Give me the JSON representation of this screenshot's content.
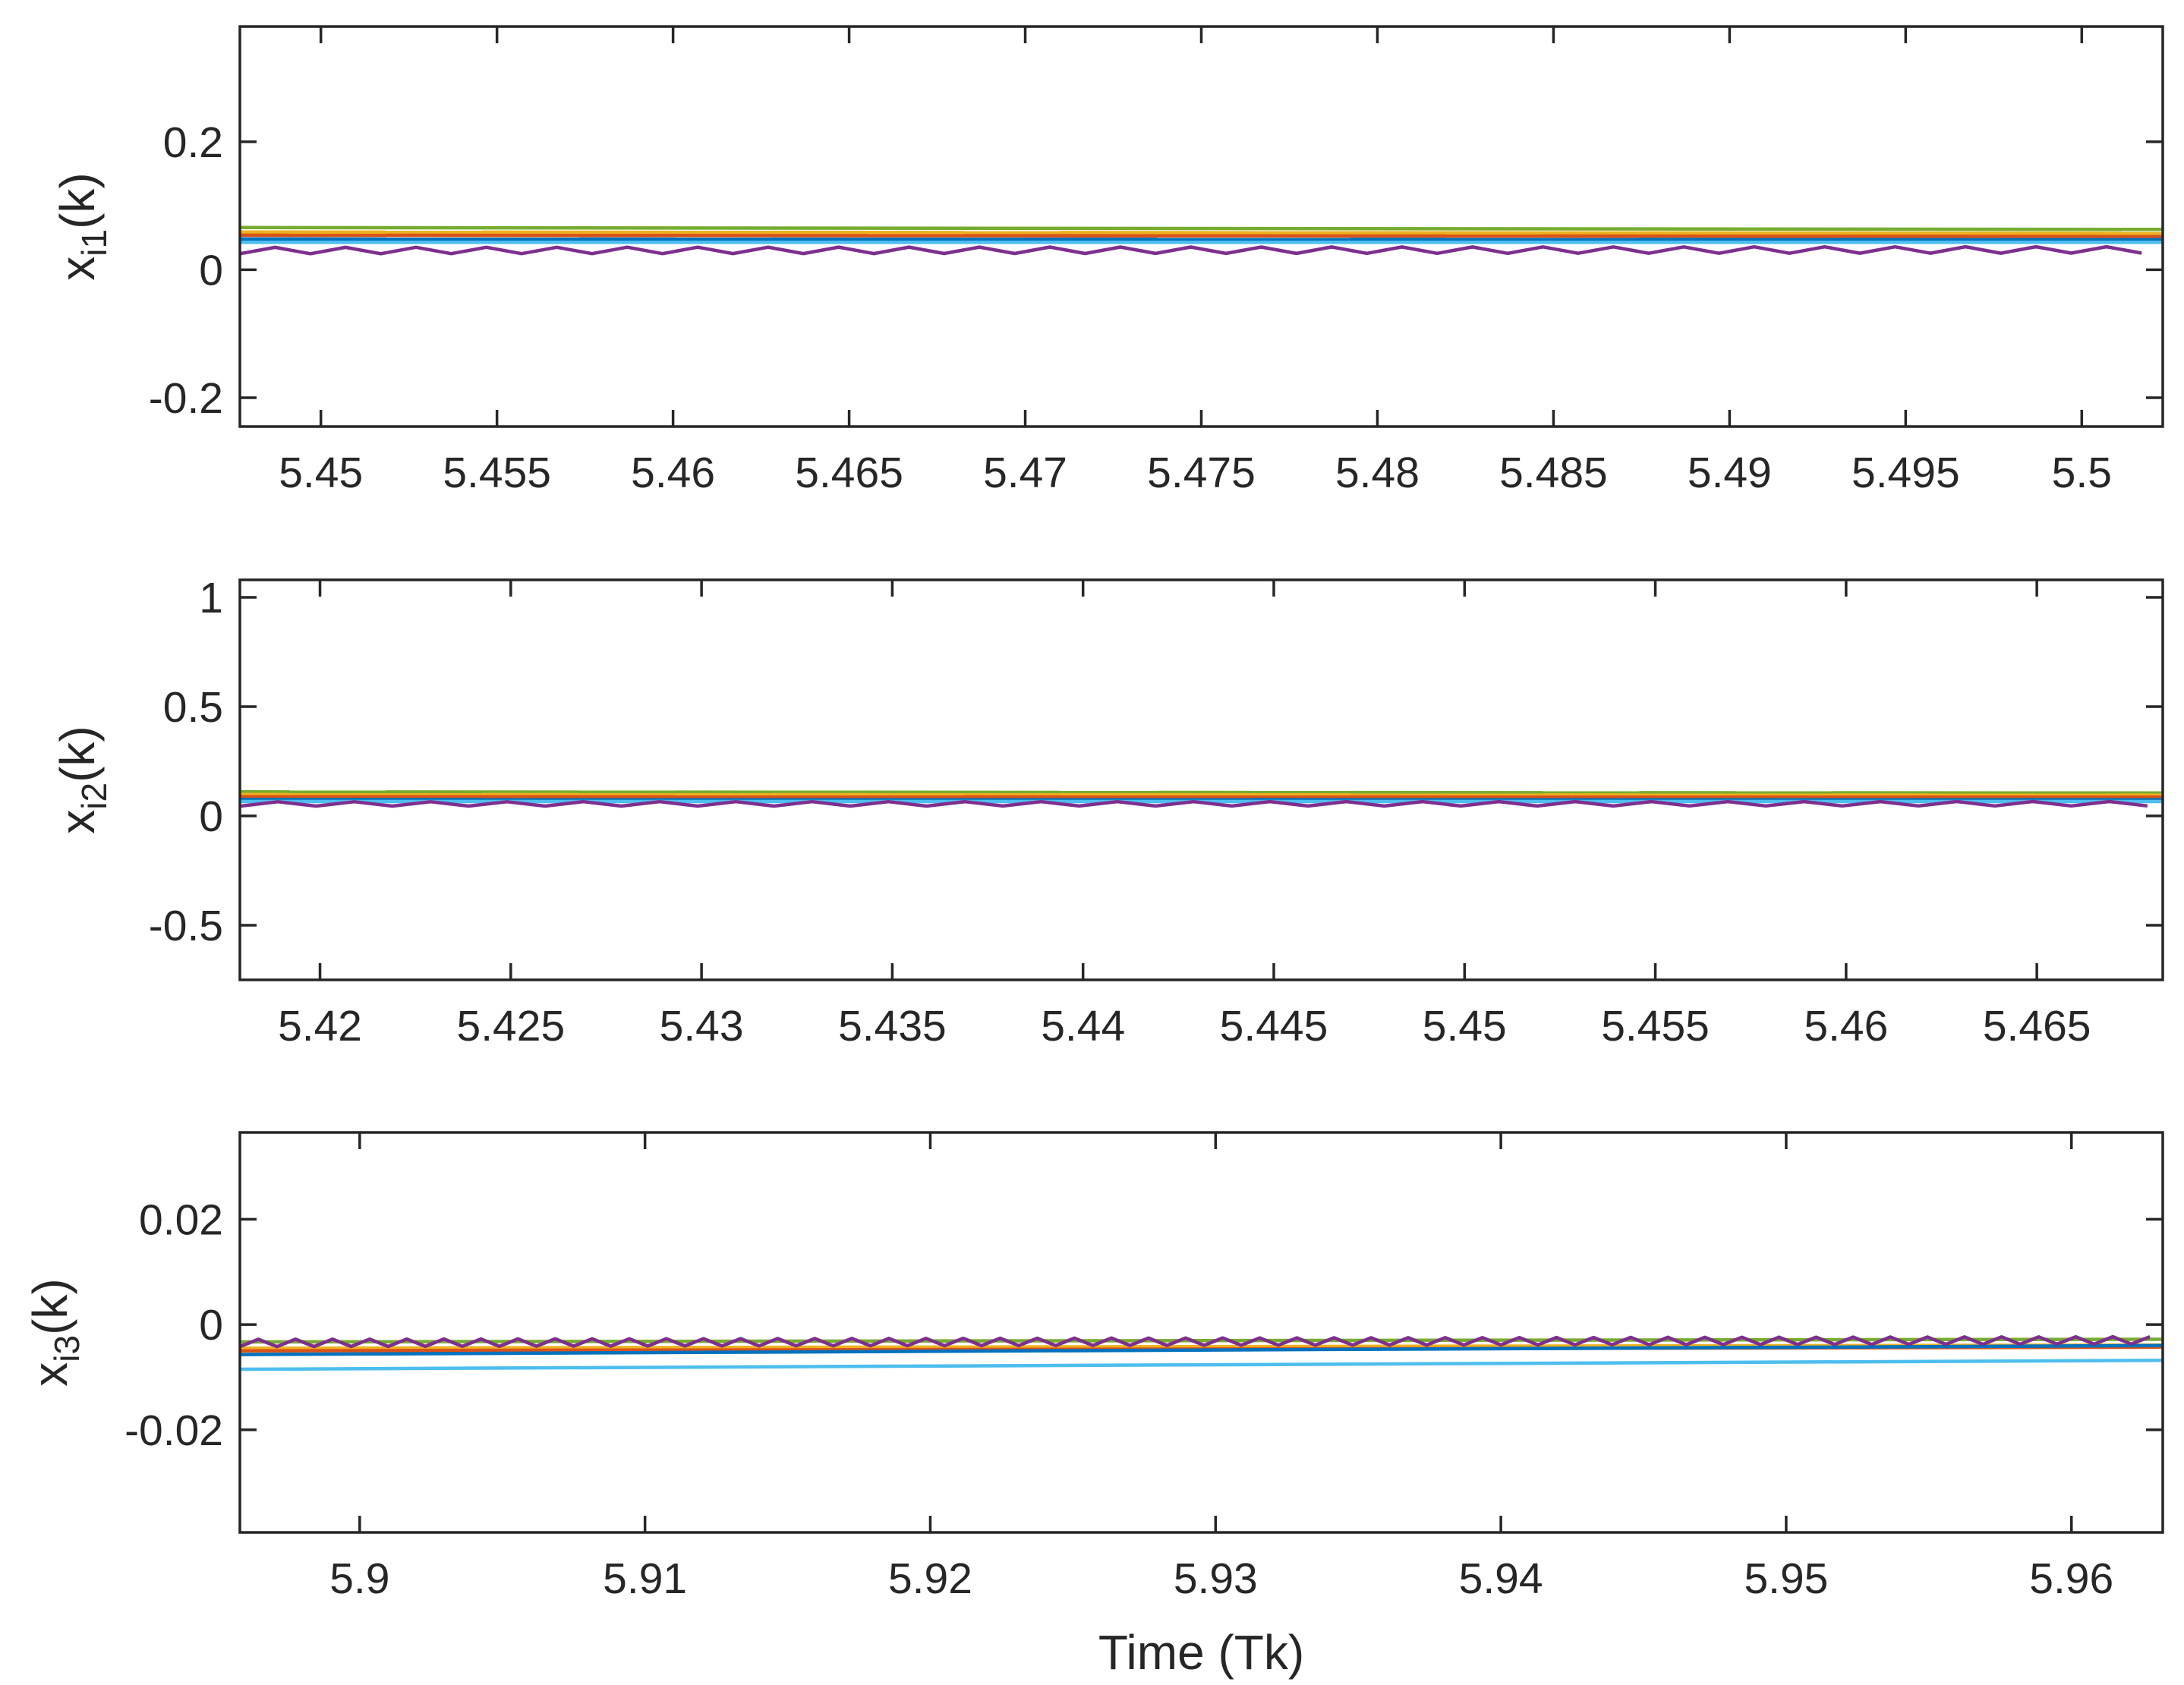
{
  "chart_data": [
    {
      "type": "line",
      "ylabel": {
        "base": "x",
        "sub": "i1",
        "suffix": "(k)"
      },
      "xlabel": "",
      "xlim": [
        5.4477,
        5.5023
      ],
      "ylim": [
        -0.245,
        0.38
      ],
      "xticks": [
        "5.45",
        "5.455",
        "5.46",
        "5.465",
        "5.47",
        "5.475",
        "5.48",
        "5.485",
        "5.49",
        "5.495",
        "5.5"
      ],
      "xtick_values": [
        5.45,
        5.455,
        5.46,
        5.465,
        5.47,
        5.475,
        5.48,
        5.485,
        5.49,
        5.495,
        5.5
      ],
      "yticks": [
        "-0.2",
        "0",
        "0.2"
      ],
      "ytick_values": [
        -0.2,
        0,
        0.2
      ],
      "grid": false,
      "series": [
        {
          "color": "#77ac30",
          "x": [
            5.4477,
            5.5023
          ],
          "y": [
            0.066,
            0.063
          ]
        },
        {
          "color": "#edb120",
          "x": [
            5.4477,
            5.5023
          ],
          "y": [
            0.059,
            0.057
          ]
        },
        {
          "color": "#d95319",
          "x": [
            5.4477,
            5.5023
          ],
          "y": [
            0.054,
            0.052
          ]
        },
        {
          "color": "#0072bd",
          "x": [
            5.4477,
            5.5023
          ],
          "y": [
            0.048,
            0.047
          ]
        },
        {
          "color": "#4dbeee",
          "x": [
            5.4477,
            5.5023
          ],
          "y": [
            0.043,
            0.043
          ]
        },
        {
          "color": "#7e2f8e",
          "x": [
            5.4477,
            5.5023
          ],
          "y": [
            0.03,
            0.031
          ],
          "oscillation": {
            "amplitude": 0.005,
            "period": 0.002
          }
        }
      ]
    },
    {
      "type": "line",
      "ylabel": {
        "base": "x",
        "sub": "i2",
        "suffix": "(k)"
      },
      "xlabel": "",
      "xlim": [
        5.4179,
        5.4683
      ],
      "ylim": [
        -0.75,
        1.08
      ],
      "xticks": [
        "5.42",
        "5.425",
        "5.43",
        "5.435",
        "5.44",
        "5.445",
        "5.45",
        "5.455",
        "5.46",
        "5.465"
      ],
      "xtick_values": [
        5.42,
        5.425,
        5.43,
        5.435,
        5.44,
        5.445,
        5.45,
        5.455,
        5.46,
        5.465
      ],
      "yticks": [
        "-0.5",
        "0",
        "0.5",
        "1"
      ],
      "ytick_values": [
        -0.5,
        0,
        0.5,
        1
      ],
      "grid": false,
      "series": [
        {
          "color": "#77ac30",
          "x": [
            5.4179,
            5.4683
          ],
          "y": [
            0.11,
            0.105
          ]
        },
        {
          "color": "#edb120",
          "x": [
            5.4179,
            5.4683
          ],
          "y": [
            0.098,
            0.095
          ]
        },
        {
          "color": "#d95319",
          "x": [
            5.4179,
            5.4683
          ],
          "y": [
            0.088,
            0.086
          ]
        },
        {
          "color": "#0072bd",
          "x": [
            5.4179,
            5.4683
          ],
          "y": [
            0.075,
            0.074
          ]
        },
        {
          "color": "#4dbeee",
          "x": [
            5.4179,
            5.4683
          ],
          "y": [
            0.066,
            0.066
          ]
        },
        {
          "color": "#7e2f8e",
          "x": [
            5.4179,
            5.4683
          ],
          "y": [
            0.055,
            0.056
          ],
          "oscillation": {
            "amplitude": 0.01,
            "period": 0.002
          }
        }
      ]
    },
    {
      "type": "line",
      "ylabel": {
        "base": "x",
        "sub": "i3",
        "suffix": "(k)"
      },
      "xlabel": "Time (Tk)",
      "xlim": [
        5.8958,
        5.9632
      ],
      "ylim": [
        -0.0395,
        0.0365
      ],
      "xticks": [
        "5.9",
        "5.91",
        "5.92",
        "5.93",
        "5.94",
        "5.95",
        "5.96"
      ],
      "xtick_values": [
        5.9,
        5.91,
        5.92,
        5.93,
        5.94,
        5.95,
        5.96
      ],
      "yticks": [
        "-0.02",
        "0",
        "0.02"
      ],
      "ytick_values": [
        -0.02,
        0,
        0.02
      ],
      "grid": false,
      "series": [
        {
          "color": "#77ac30",
          "x": [
            5.8958,
            5.9632
          ],
          "y": [
            -0.0033,
            -0.0028
          ]
        },
        {
          "color": "#edb120",
          "x": [
            5.8958,
            5.9632
          ],
          "y": [
            -0.0045,
            -0.0039
          ]
        },
        {
          "color": "#d95319",
          "x": [
            5.8958,
            5.9632
          ],
          "y": [
            -0.005,
            -0.0043
          ]
        },
        {
          "color": "#0072bd",
          "x": [
            5.8958,
            5.9632
          ],
          "y": [
            -0.0057,
            -0.004
          ]
        },
        {
          "color": "#4dbeee",
          "x": [
            5.8958,
            5.9632
          ],
          "y": [
            -0.0085,
            -0.0068
          ]
        },
        {
          "color": "#7e2f8e",
          "x": [
            5.8958,
            5.9632
          ],
          "y": [
            -0.0035,
            -0.003
          ],
          "oscillation": {
            "amplitude": 0.0007,
            "period": 0.0013
          }
        }
      ]
    }
  ]
}
